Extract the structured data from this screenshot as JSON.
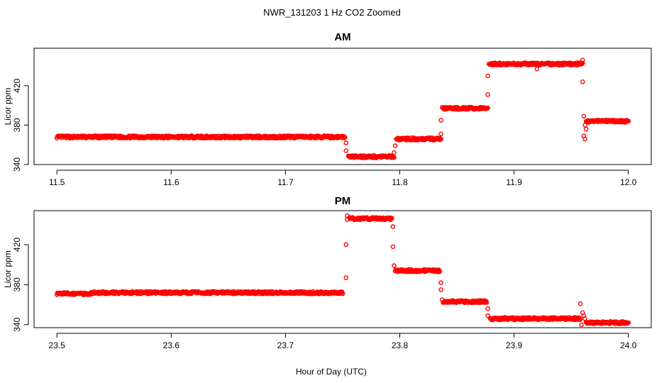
{
  "figure": {
    "title": "NWR_131203  1 Hz CO2 Zoomed",
    "xlabel": "Hour of Day (UTC)"
  },
  "colors": {
    "points": "#ff0000",
    "axis": "#000000"
  },
  "chart_data": [
    {
      "type": "scatter",
      "title": "AM",
      "xlabel": "",
      "ylabel": "Licor ppm",
      "xlim": [
        11.48,
        12.02
      ],
      "ylim": [
        340,
        458
      ],
      "xticks": [
        "11.5",
        "11.6",
        "11.7",
        "11.8",
        "11.9",
        "12.0"
      ],
      "xtick_values": [
        11.5,
        11.6,
        11.7,
        11.8,
        11.9,
        12.0
      ],
      "yticks": [
        "340",
        "380",
        "420"
      ],
      "ytick_values": [
        340,
        380,
        420
      ],
      "grid": false,
      "marker": "open-circle",
      "segments": [
        {
          "x": [
            11.5,
            11.752
          ],
          "y": 368
        },
        {
          "x": [
            11.755,
            11.795
          ],
          "y": 348
        },
        {
          "x": [
            11.797,
            11.836
          ],
          "y": 366
        },
        {
          "x": [
            11.838,
            11.877
          ],
          "y": 397
        },
        {
          "x": [
            11.879,
            11.96
          ],
          "y": 442
        },
        {
          "x": [
            11.963,
            12.0
          ],
          "y": 384
        }
      ],
      "transitions": [
        {
          "x": 11.753,
          "y": 362
        },
        {
          "x": 11.753,
          "y": 354
        },
        {
          "x": 11.796,
          "y": 359
        },
        {
          "x": 11.795,
          "y": 352
        },
        {
          "x": 11.836,
          "y": 371
        },
        {
          "x": 11.836,
          "y": 385
        },
        {
          "x": 11.837,
          "y": 398
        },
        {
          "x": 11.877,
          "y": 411
        },
        {
          "x": 11.877,
          "y": 430
        },
        {
          "x": 11.878,
          "y": 442
        },
        {
          "x": 11.96,
          "y": 446
        },
        {
          "x": 11.96,
          "y": 424
        },
        {
          "x": 11.961,
          "y": 389
        },
        {
          "x": 11.962,
          "y": 380
        },
        {
          "x": 11.962,
          "y": 366
        },
        {
          "x": 11.961,
          "y": 369
        },
        {
          "x": 11.963,
          "y": 376
        },
        {
          "x": 11.92,
          "y": 437
        }
      ]
    },
    {
      "type": "scatter",
      "title": "PM",
      "xlabel": "Hour of Day (UTC)",
      "ylabel": "Licor ppm",
      "xlim": [
        23.48,
        24.02
      ],
      "ylim": [
        337,
        454
      ],
      "xticks": [
        "23.5",
        "23.6",
        "23.7",
        "23.8",
        "23.9",
        "24.0"
      ],
      "xtick_values": [
        23.5,
        23.6,
        23.7,
        23.8,
        23.9,
        24.0
      ],
      "yticks": [
        "340",
        "380",
        "420"
      ],
      "ytick_values": [
        340,
        380,
        420
      ],
      "grid": false,
      "marker": "open-circle",
      "segments": [
        {
          "x": [
            23.5,
            23.53
          ],
          "y": 371
        },
        {
          "x": [
            23.53,
            23.75
          ],
          "y": 372
        },
        {
          "x": [
            23.756,
            23.793
          ],
          "y": 446
        },
        {
          "x": [
            23.796,
            23.835
          ],
          "y": 394
        },
        {
          "x": [
            23.838,
            23.876
          ],
          "y": 363
        },
        {
          "x": [
            23.879,
            23.958
          ],
          "y": 346
        },
        {
          "x": [
            23.963,
            24.0
          ],
          "y": 342
        }
      ],
      "transitions": [
        {
          "x": 23.753,
          "y": 387
        },
        {
          "x": 23.753,
          "y": 420
        },
        {
          "x": 23.754,
          "y": 449
        },
        {
          "x": 23.754,
          "y": 445
        },
        {
          "x": 23.794,
          "y": 438
        },
        {
          "x": 23.794,
          "y": 418
        },
        {
          "x": 23.795,
          "y": 399
        },
        {
          "x": 23.836,
          "y": 382
        },
        {
          "x": 23.836,
          "y": 375
        },
        {
          "x": 23.837,
          "y": 365
        },
        {
          "x": 23.877,
          "y": 356
        },
        {
          "x": 23.877,
          "y": 349
        },
        {
          "x": 23.958,
          "y": 361
        },
        {
          "x": 23.959,
          "y": 340
        },
        {
          "x": 23.96,
          "y": 352
        },
        {
          "x": 23.961,
          "y": 349
        },
        {
          "x": 23.962,
          "y": 346
        }
      ]
    }
  ]
}
